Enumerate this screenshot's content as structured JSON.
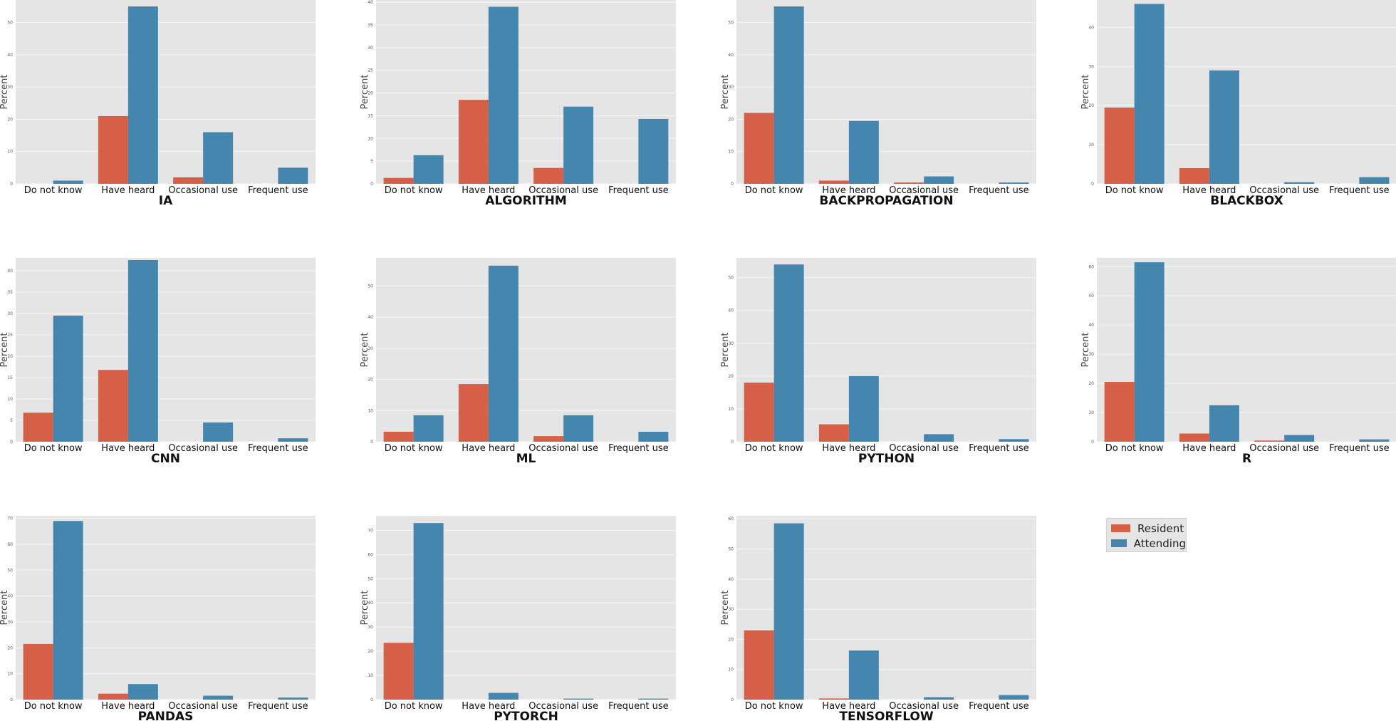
{
  "colors": {
    "resident": "#d65f47",
    "attending": "#4486ad",
    "panel_bg": "#e5e5e5",
    "grid": "#f7f7f7"
  },
  "legend": {
    "items": [
      {
        "label": "Resident",
        "color": "#d65f47"
      },
      {
        "label": "Attending",
        "color": "#4486ad"
      }
    ]
  },
  "chart_data": [
    {
      "type": "bar",
      "title": "IA",
      "ylabel": "Percent",
      "ylim": [
        0,
        57
      ],
      "yticks": [
        0,
        10,
        20,
        30,
        40,
        50
      ],
      "categories": [
        "Do not know",
        "Have heard",
        "Occasional use",
        "Frequent use"
      ],
      "series": [
        {
          "name": "Resident",
          "values": [
            0,
            21,
            2,
            0
          ]
        },
        {
          "name": "Attending",
          "values": [
            1,
            55,
            16,
            5
          ]
        }
      ]
    },
    {
      "type": "bar",
      "title": "ALGORITHM",
      "ylabel": "Percent",
      "ylim": [
        0,
        40.5
      ],
      "yticks": [
        0,
        5,
        10,
        15,
        20,
        25,
        30,
        35,
        40
      ],
      "categories": [
        "Do not know",
        "Have heard",
        "Occasional use",
        "Frequent use"
      ],
      "series": [
        {
          "name": "Resident",
          "values": [
            1.3,
            18.5,
            3.5,
            0
          ]
        },
        {
          "name": "Attending",
          "values": [
            6.3,
            39,
            17,
            14.3
          ]
        }
      ]
    },
    {
      "type": "bar",
      "title": "BACKPROPAGATION",
      "ylabel": "Percent",
      "ylim": [
        0,
        57
      ],
      "yticks": [
        0,
        10,
        20,
        30,
        40,
        50
      ],
      "categories": [
        "Do not know",
        "Have heard",
        "Occasional use",
        "Frequent use"
      ],
      "series": [
        {
          "name": "Resident",
          "values": [
            22,
            1,
            0.4,
            0
          ]
        },
        {
          "name": "Attending",
          "values": [
            55,
            19.5,
            2.3,
            0.4
          ]
        }
      ]
    },
    {
      "type": "bar",
      "title": "BLACKBOX",
      "ylabel": "Percent",
      "ylim": [
        0,
        47
      ],
      "yticks": [
        0,
        10,
        20,
        30,
        40
      ],
      "categories": [
        "Do not know",
        "Have heard",
        "Occasional use",
        "Frequent use"
      ],
      "series": [
        {
          "name": "Resident",
          "values": [
            19.5,
            4,
            0,
            0
          ]
        },
        {
          "name": "Attending",
          "values": [
            46,
            29,
            0.4,
            1.7
          ]
        }
      ]
    },
    {
      "type": "bar",
      "title": "CNN",
      "ylabel": "Percent",
      "ylim": [
        0,
        43
      ],
      "yticks": [
        0,
        5,
        10,
        15,
        20,
        25,
        30,
        35,
        40
      ],
      "categories": [
        "Do not know",
        "Have heard",
        "Occasional use",
        "Frequent use"
      ],
      "series": [
        {
          "name": "Resident",
          "values": [
            6.8,
            16.8,
            0,
            0
          ]
        },
        {
          "name": "Attending",
          "values": [
            29.5,
            42.5,
            4.5,
            0.8
          ]
        }
      ]
    },
    {
      "type": "bar",
      "title": "ML",
      "ylabel": "Percent",
      "ylim": [
        0,
        59
      ],
      "yticks": [
        0,
        10,
        20,
        30,
        40,
        50
      ],
      "categories": [
        "Do not know",
        "Have heard",
        "Occasional use",
        "Frequent use"
      ],
      "series": [
        {
          "name": "Resident",
          "values": [
            3.2,
            18.5,
            1.8,
            0
          ]
        },
        {
          "name": "Attending",
          "values": [
            8.5,
            56.5,
            8.5,
            3.2
          ]
        }
      ]
    },
    {
      "type": "bar",
      "title": "PYTHON",
      "ylabel": "Percent",
      "ylim": [
        0,
        56
      ],
      "yticks": [
        0,
        10,
        20,
        30,
        40,
        50
      ],
      "categories": [
        "Do not know",
        "Have heard",
        "Occasional use",
        "Frequent use"
      ],
      "series": [
        {
          "name": "Resident",
          "values": [
            18,
            5.3,
            0,
            0
          ]
        },
        {
          "name": "Attending",
          "values": [
            54,
            20,
            2.3,
            0.8
          ]
        }
      ]
    },
    {
      "type": "bar",
      "title": "R",
      "ylabel": "Percent",
      "ylim": [
        0,
        63
      ],
      "yticks": [
        0,
        10,
        20,
        30,
        40,
        50,
        60
      ],
      "categories": [
        "Do not know",
        "Have heard",
        "Occasional use",
        "Frequent use"
      ],
      "series": [
        {
          "name": "Resident",
          "values": [
            20.5,
            2.8,
            0.4,
            0
          ]
        },
        {
          "name": "Attending",
          "values": [
            61.5,
            12.5,
            2.3,
            0.8
          ]
        }
      ]
    },
    {
      "type": "bar",
      "title": "PANDAS",
      "ylabel": "Percent",
      "ylim": [
        0,
        71
      ],
      "yticks": [
        0,
        10,
        20,
        30,
        40,
        50,
        60,
        70
      ],
      "categories": [
        "Do not know",
        "Have heard",
        "Occasional use",
        "Frequent use"
      ],
      "series": [
        {
          "name": "Resident",
          "values": [
            21.5,
            2.3,
            0,
            0
          ]
        },
        {
          "name": "Attending",
          "values": [
            69,
            6,
            1.5,
            0.8
          ]
        }
      ]
    },
    {
      "type": "bar",
      "title": "PYTORCH",
      "ylabel": "Percent",
      "ylim": [
        0,
        76
      ],
      "yticks": [
        0,
        10,
        20,
        30,
        40,
        50,
        60,
        70
      ],
      "categories": [
        "Do not know",
        "Have heard",
        "Occasional use",
        "Frequent use"
      ],
      "series": [
        {
          "name": "Resident",
          "values": [
            23.5,
            0,
            0,
            0
          ]
        },
        {
          "name": "Attending",
          "values": [
            73,
            2.8,
            0.4,
            0.4
          ]
        }
      ]
    },
    {
      "type": "bar",
      "title": "TENSORFLOW",
      "ylabel": "Percent",
      "ylim": [
        0,
        61
      ],
      "yticks": [
        0,
        10,
        20,
        30,
        40,
        50,
        60
      ],
      "categories": [
        "Do not know",
        "Have heard",
        "Occasional use",
        "Frequent use"
      ],
      "series": [
        {
          "name": "Resident",
          "values": [
            23,
            0.4,
            0,
            0
          ]
        },
        {
          "name": "Attending",
          "values": [
            58.5,
            16.3,
            0.8,
            1.5
          ]
        }
      ]
    }
  ]
}
